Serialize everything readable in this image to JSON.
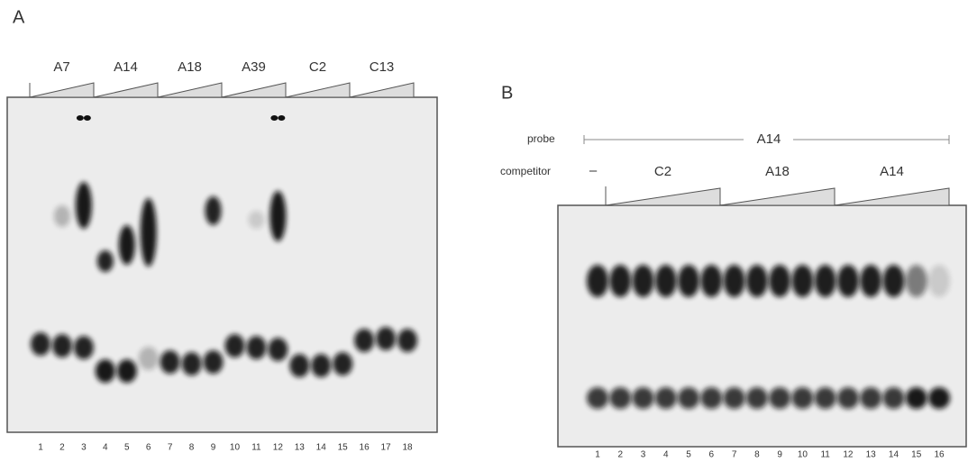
{
  "panel_a": {
    "label": "A",
    "groups": [
      "A7",
      "A14",
      "A18",
      "A39",
      "C2",
      "C13"
    ],
    "lanes": [
      1,
      2,
      3,
      4,
      5,
      6,
      7,
      8,
      9,
      10,
      11,
      12,
      13,
      14,
      15,
      16,
      17,
      18
    ]
  },
  "panel_b": {
    "label": "B",
    "probe_label": "probe",
    "probe": "A14",
    "competitor_label": "competitor",
    "no_competitor": "–",
    "groups": [
      "C2",
      "A18",
      "A14"
    ],
    "lanes": [
      1,
      2,
      3,
      4,
      5,
      6,
      7,
      8,
      9,
      10,
      11,
      12,
      13,
      14,
      15,
      16
    ]
  }
}
